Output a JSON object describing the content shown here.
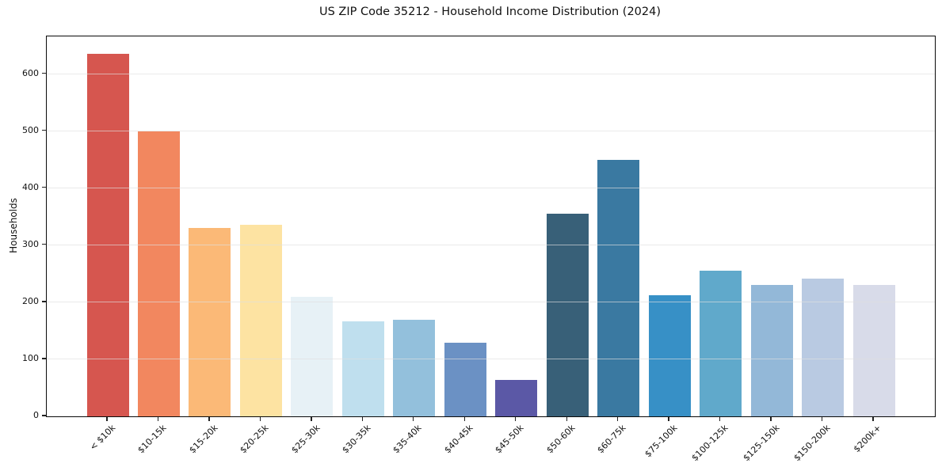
{
  "title": "US ZIP Code 35212 - Household Income Distribution (2024)",
  "y_axis": {
    "label": "Households",
    "tick_labels": [
      "0",
      "100",
      "200",
      "300",
      "400",
      "500",
      "600"
    ]
  },
  "chart_data": {
    "type": "bar",
    "title": "US ZIP Code 35212 - Household Income Distribution (2024)",
    "xlabel": "",
    "ylabel": "Households",
    "categories": [
      "< $10k",
      "$10-15k",
      "$15-20k",
      "$20-25k",
      "$25-30k",
      "$30-35k",
      "$35-40k",
      "$40-45k",
      "$45-50k",
      "$50-60k",
      "$60-75k",
      "$75-100k",
      "$100-125k",
      "$125-150k",
      "$150-200k",
      "$200k+"
    ],
    "values": [
      635,
      499,
      330,
      336,
      210,
      166,
      169,
      129,
      64,
      355,
      450,
      213,
      255,
      230,
      241,
      230
    ],
    "bar_colors": [
      "#d6564f",
      "#f2875f",
      "#fbb977",
      "#fde3a2",
      "#e7f1f6",
      "#bfdfee",
      "#93c0dc",
      "#6b91c4",
      "#5b58a6",
      "#386078",
      "#3a79a1",
      "#3790c6",
      "#60a9cb",
      "#93b8d8",
      "#b9cae2",
      "#d8dbe9"
    ],
    "ylim": [
      0,
      666
    ],
    "yticks": [
      0,
      100,
      200,
      300,
      400,
      500,
      600
    ],
    "grid": true,
    "grid_on_top": true,
    "legend": false,
    "background_color": "#ffffff",
    "grid_color": "#e6e6e6",
    "x_tick_rotation": 45
  }
}
